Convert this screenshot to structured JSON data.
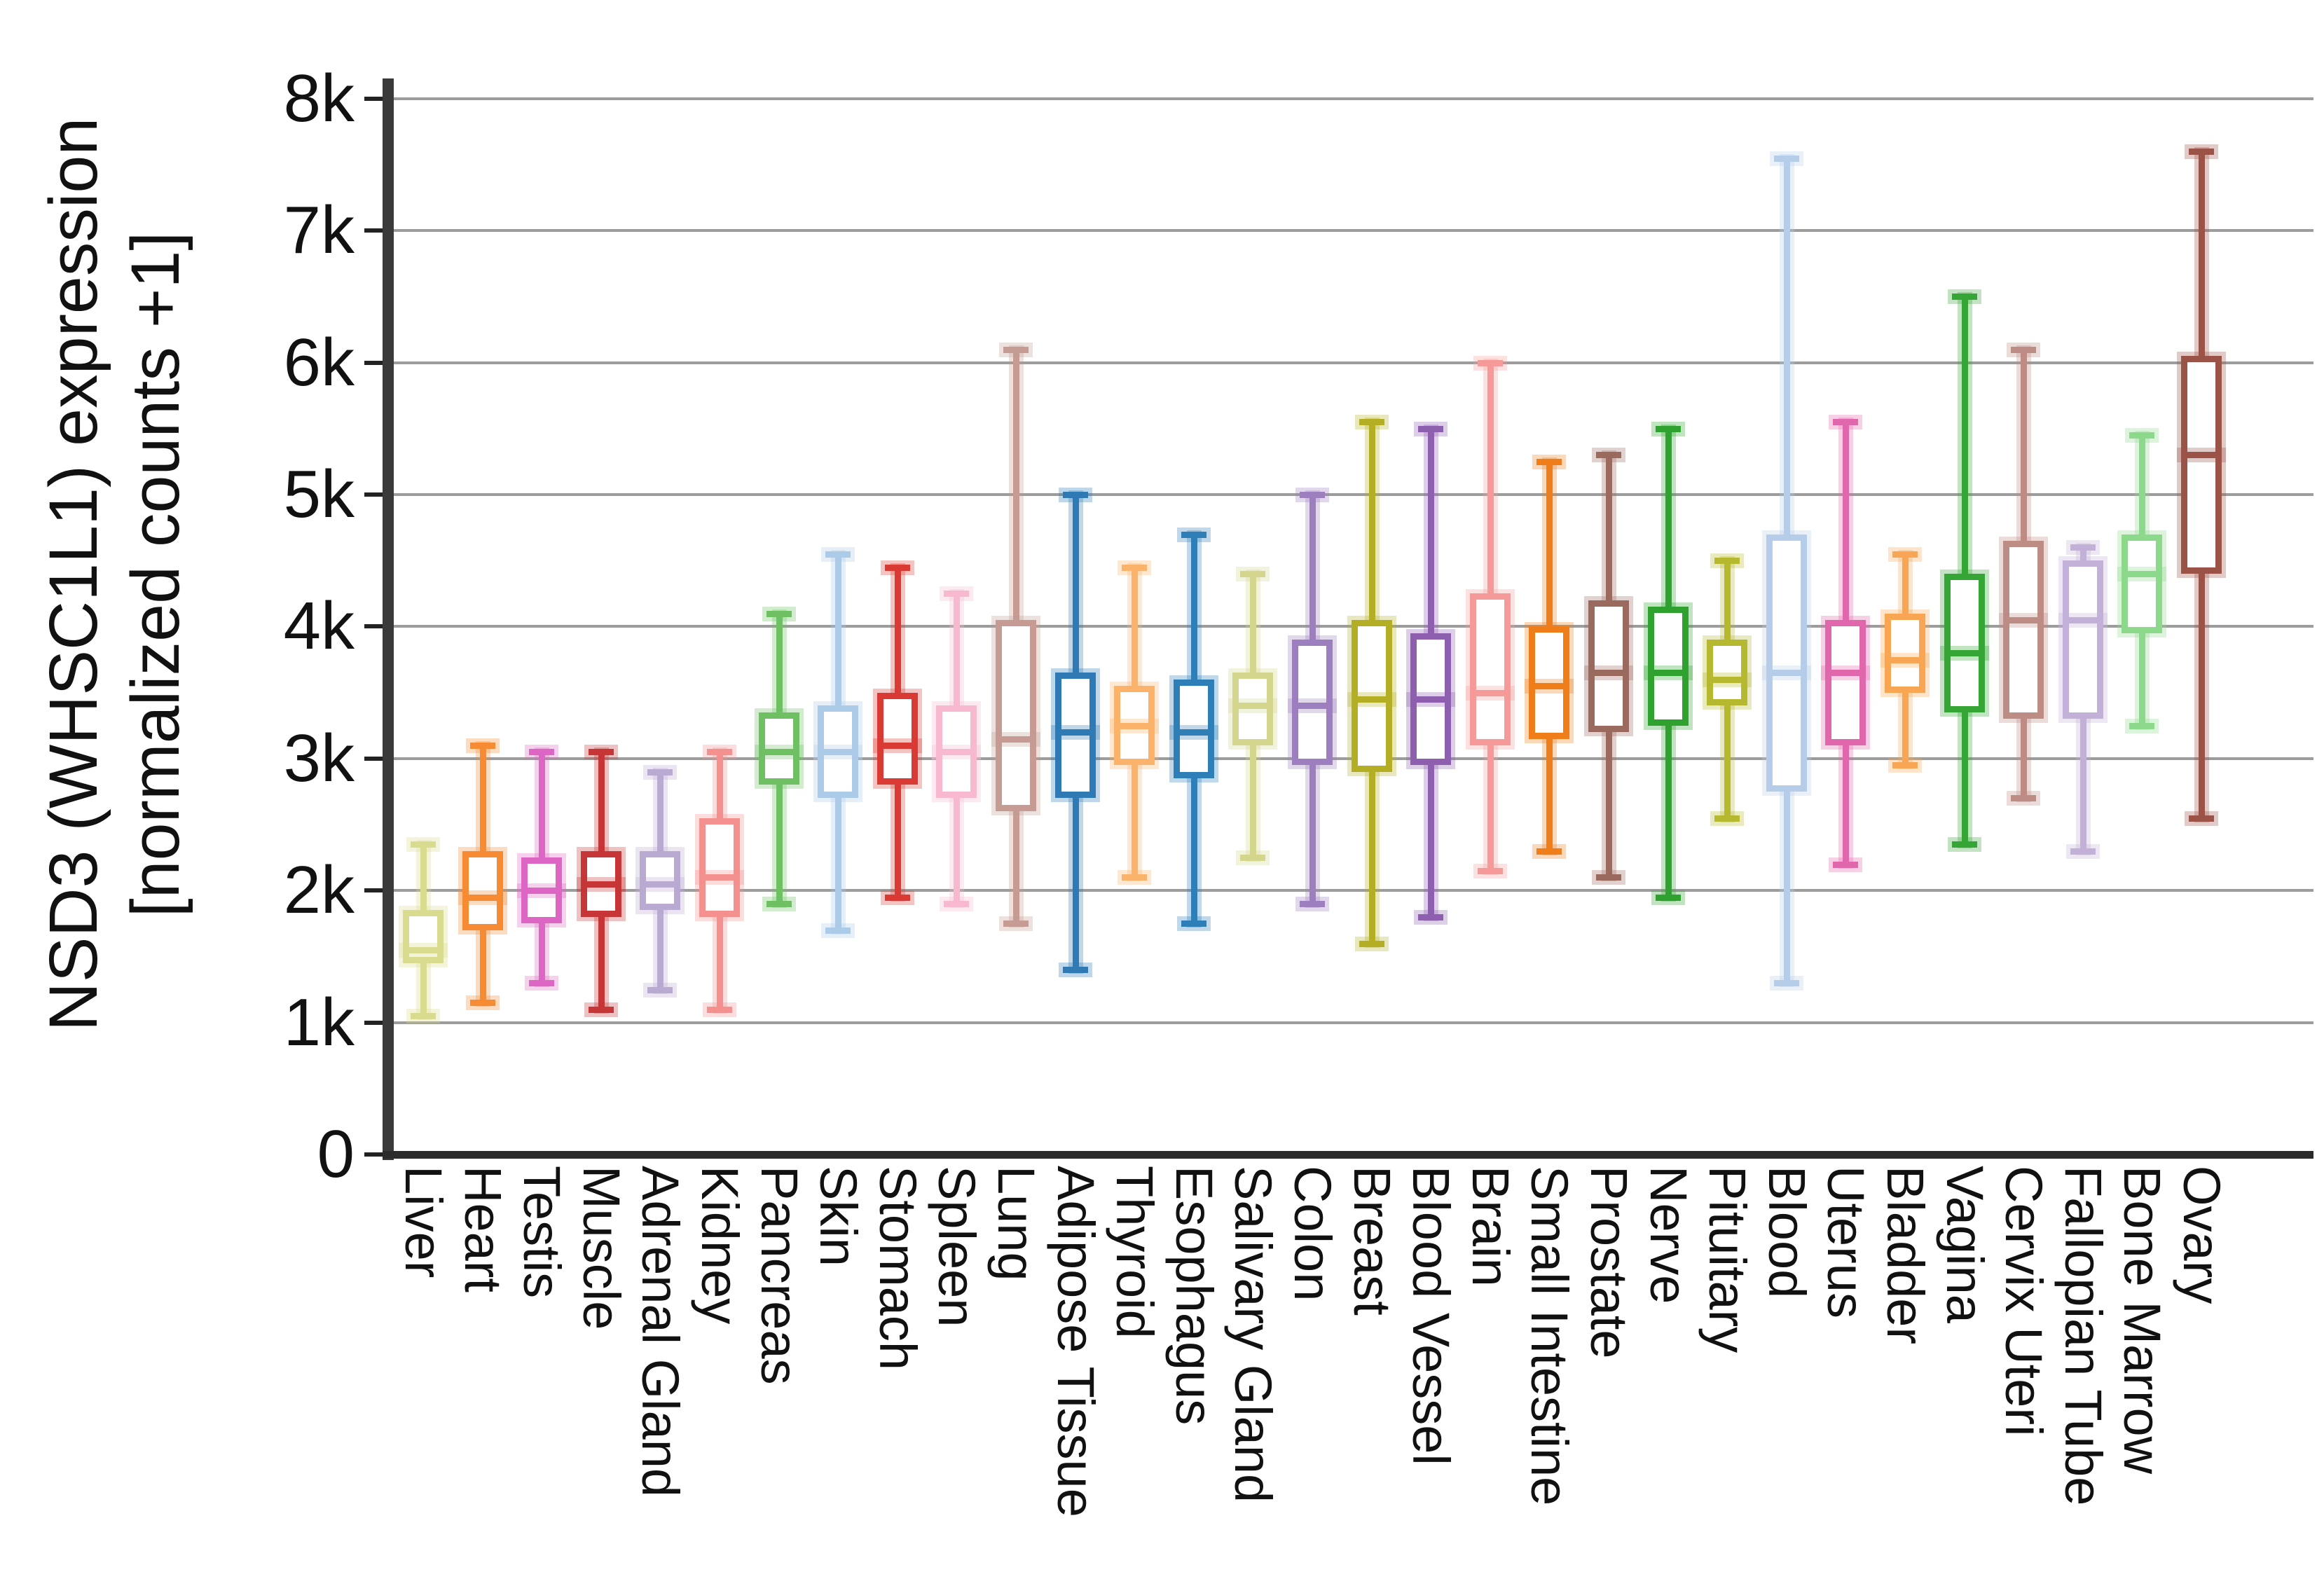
{
  "figure": {
    "y_axis_title_line1": "NSD3 (WHSC1L1) expression",
    "y_axis_title_line2": "[normalized counts +1]",
    "y_tick_labels": [
      "0",
      "1k",
      "2k",
      "3k",
      "4k",
      "5k",
      "6k",
      "7k",
      "8k"
    ],
    "background_color": "#ffffff",
    "gridline_color": "#9c9c9c",
    "axis_color": "#3a3a3a",
    "text_color": "#111111"
  },
  "chart_data": {
    "type": "box",
    "title": "",
    "xlabel": "",
    "ylabel": "NSD3 (WHSC1L1) expression [normalized counts +1]",
    "ylim": [
      0,
      8000
    ],
    "y_tick_step": 1000,
    "grid": "horizontal gridlines every 1k, y axis left, tissue labels rotated 90deg below axis",
    "legend": "none",
    "series": [
      {
        "label": "Liver",
        "color": "#d9dc8e",
        "whislo": 1050,
        "q1": 1450,
        "med": 1550,
        "q3": 1850,
        "whishi": 2350
      },
      {
        "label": "Heart",
        "color": "#f68b33",
        "whislo": 1150,
        "q1": 1700,
        "med": 1950,
        "q3": 2300,
        "whishi": 3100
      },
      {
        "label": "Testis",
        "color": "#dd66c5",
        "whislo": 1300,
        "q1": 1750,
        "med": 2000,
        "q3": 2250,
        "whishi": 3050
      },
      {
        "label": "Muscle",
        "color": "#c63636",
        "whislo": 1100,
        "q1": 1800,
        "med": 2050,
        "q3": 2300,
        "whishi": 3050
      },
      {
        "label": "Adrenal Gland",
        "color": "#b9aad2",
        "whislo": 1250,
        "q1": 1850,
        "med": 2050,
        "q3": 2300,
        "whishi": 2900
      },
      {
        "label": "Kidney",
        "color": "#f4908e",
        "whislo": 1100,
        "q1": 1800,
        "med": 2100,
        "q3": 2550,
        "whishi": 3050
      },
      {
        "label": "Pancreas",
        "color": "#6ec063",
        "whislo": 1900,
        "q1": 2800,
        "med": 3050,
        "q3": 3350,
        "whishi": 4100
      },
      {
        "label": "Skin",
        "color": "#accbe8",
        "whislo": 1700,
        "q1": 2700,
        "med": 3050,
        "q3": 3400,
        "whishi": 4550
      },
      {
        "label": "Stomach",
        "color": "#d93a34",
        "whislo": 1950,
        "q1": 2800,
        "med": 3100,
        "q3": 3500,
        "whishi": 4450
      },
      {
        "label": "Spleen",
        "color": "#f8b8cf",
        "whislo": 1900,
        "q1": 2700,
        "med": 3050,
        "q3": 3400,
        "whishi": 4250
      },
      {
        "label": "Lung",
        "color": "#c59b93",
        "whislo": 1750,
        "q1": 2600,
        "med": 3150,
        "q3": 4050,
        "whishi": 6100
      },
      {
        "label": "Adipose Tissue",
        "color": "#2f7ab5",
        "whislo": 1400,
        "q1": 2700,
        "med": 3200,
        "q3": 3650,
        "whishi": 5000
      },
      {
        "label": "Thyroid",
        "color": "#fbb36b",
        "whislo": 2100,
        "q1": 2950,
        "med": 3250,
        "q3": 3550,
        "whishi": 4450
      },
      {
        "label": "Esophagus",
        "color": "#2e7eb8",
        "whislo": 1750,
        "q1": 2850,
        "med": 3200,
        "q3": 3600,
        "whishi": 4700
      },
      {
        "label": "Salivary Gland",
        "color": "#d4d68d",
        "whislo": 2250,
        "q1": 3100,
        "med": 3400,
        "q3": 3650,
        "whishi": 4400
      },
      {
        "label": "Colon",
        "color": "#9d7fc0",
        "whislo": 1900,
        "q1": 2950,
        "med": 3400,
        "q3": 3900,
        "whishi": 5000
      },
      {
        "label": "Breast",
        "color": "#b4ae25",
        "whislo": 1600,
        "q1": 2900,
        "med": 3450,
        "q3": 4050,
        "whishi": 5550
      },
      {
        "label": "Blood Vessel",
        "color": "#8d5fae",
        "whislo": 1800,
        "q1": 2950,
        "med": 3450,
        "q3": 3950,
        "whishi": 5500
      },
      {
        "label": "Brain",
        "color": "#f59a98",
        "whislo": 2150,
        "q1": 3100,
        "med": 3500,
        "q3": 4250,
        "whishi": 6000
      },
      {
        "label": "Small Intestine",
        "color": "#ef7d1a",
        "whislo": 2300,
        "q1": 3150,
        "med": 3550,
        "q3": 4000,
        "whishi": 5250
      },
      {
        "label": "Prostate",
        "color": "#9a6a5f",
        "whislo": 2100,
        "q1": 3200,
        "med": 3650,
        "q3": 4200,
        "whishi": 5300
      },
      {
        "label": "Nerve",
        "color": "#2fa12f",
        "whislo": 1950,
        "q1": 3250,
        "med": 3650,
        "q3": 4150,
        "whishi": 5500
      },
      {
        "label": "Pituitary",
        "color": "#b6b92f",
        "whislo": 2550,
        "q1": 3400,
        "med": 3600,
        "q3": 3900,
        "whishi": 4500
      },
      {
        "label": "Blood",
        "color": "#b5cde8",
        "whislo": 1300,
        "q1": 2750,
        "med": 3650,
        "q3": 4700,
        "whishi": 7550
      },
      {
        "label": "Uterus",
        "color": "#e167ad",
        "whislo": 2200,
        "q1": 3100,
        "med": 3650,
        "q3": 4050,
        "whishi": 5550
      },
      {
        "label": "Bladder",
        "color": "#f8a653",
        "whislo": 2950,
        "q1": 3500,
        "med": 3750,
        "q3": 4100,
        "whishi": 4550
      },
      {
        "label": "Vagina",
        "color": "#35a535",
        "whislo": 2350,
        "q1": 3350,
        "med": 3800,
        "q3": 4400,
        "whishi": 6500
      },
      {
        "label": "Cervix Uteri",
        "color": "#bd8c84",
        "whislo": 2700,
        "q1": 3300,
        "med": 4050,
        "q3": 4650,
        "whishi": 6100
      },
      {
        "label": "Fallopian Tube",
        "color": "#c2b0d8",
        "whislo": 2300,
        "q1": 3300,
        "med": 4050,
        "q3": 4500,
        "whishi": 4600
      },
      {
        "label": "Bone Marrow",
        "color": "#8cd98c",
        "whislo": 3250,
        "q1": 3950,
        "med": 4400,
        "q3": 4700,
        "whishi": 5450
      },
      {
        "label": "Ovary",
        "color": "#9b5348",
        "whislo": 2550,
        "q1": 4400,
        "med": 5300,
        "q3": 6050,
        "whishi": 7600
      }
    ]
  }
}
